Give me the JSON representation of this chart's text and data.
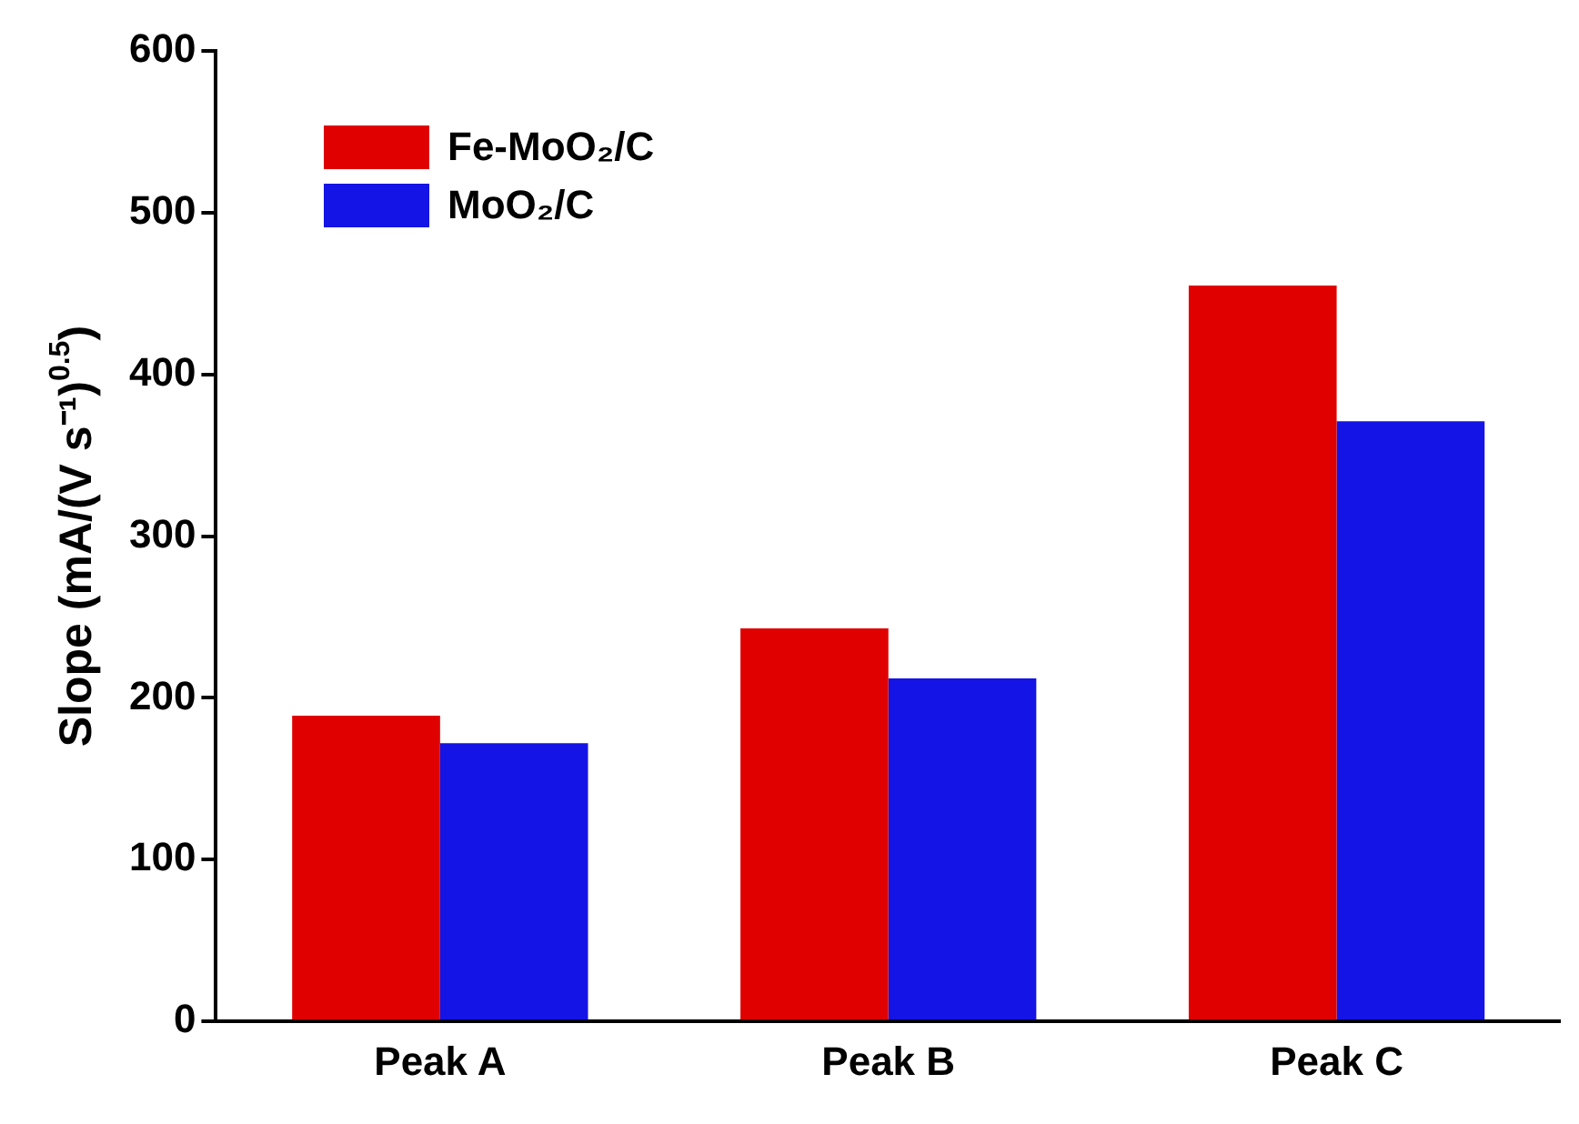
{
  "chart_data": {
    "type": "bar",
    "ylabel": "Slope (mA/(V s⁻¹)$^{0.5}$)",
    "categories": [
      "Peak A",
      "Peak B",
      "Peak C"
    ],
    "series": [
      {
        "name": "Fe-MoO₂/C",
        "color": "#e00000",
        "values": [
          189,
          243,
          455
        ]
      },
      {
        "name": "MoO₂/C",
        "color": "#1414e6",
        "values": [
          172,
          212,
          371
        ]
      }
    ],
    "ylim": [
      0,
      600
    ],
    "yticks": [
      0,
      100,
      200,
      300,
      400,
      500,
      600
    ],
    "grid": false,
    "legend": "top left"
  }
}
